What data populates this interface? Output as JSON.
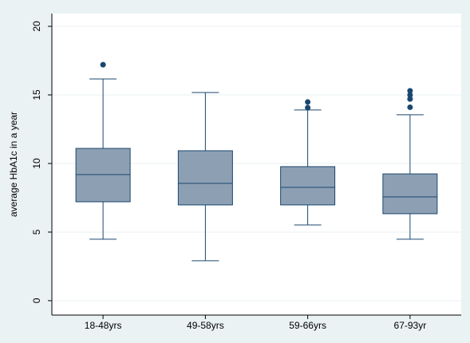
{
  "chart_data": {
    "type": "box",
    "y_label": "average HbA1c in a year",
    "categories": [
      "18-48yrs",
      "49-58yrs",
      "59-66yrs",
      "67-93yr"
    ],
    "whisker_low": [
      4.48,
      2.91,
      5.52,
      4.48
    ],
    "q1": [
      7.21,
      6.98,
      6.98,
      6.34
    ],
    "median": [
      9.19,
      8.55,
      8.26,
      7.56
    ],
    "q3": [
      11.1,
      10.93,
      9.77,
      9.24
    ],
    "whisker_high": [
      16.16,
      15.17,
      13.9,
      13.55
    ],
    "outliers": [
      [
        17.2
      ],
      [],
      [
        14.48,
        14.07
      ],
      [
        15.3,
        15.0,
        14.7,
        14.1
      ]
    ],
    "color": "#8da0b3",
    "line_color": "#1a476f",
    "ylim": [
      -1.05,
      20.93
    ],
    "yticks": [
      0,
      5,
      10,
      15,
      20
    ],
    "grid": true
  }
}
